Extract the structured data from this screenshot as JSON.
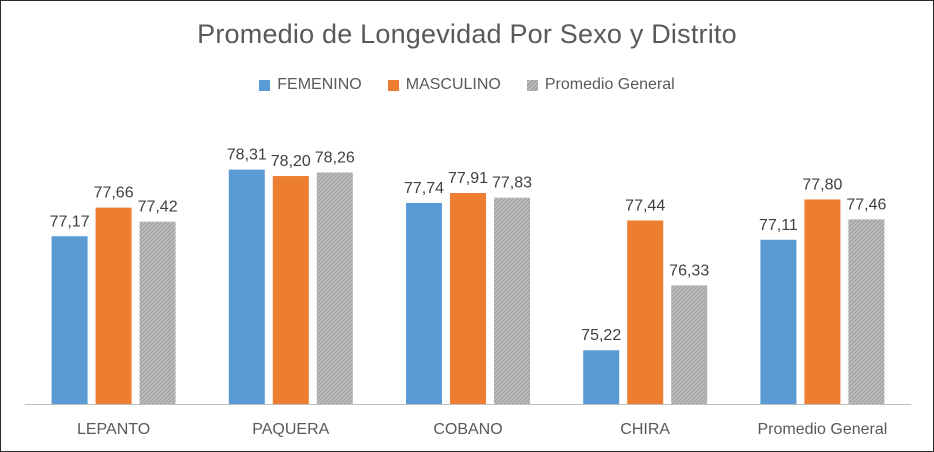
{
  "chart_data": {
    "type": "bar",
    "title": "Promedio de Longevidad Por Sexo y Distrito",
    "categories": [
      "LEPANTO",
      "PAQUERA",
      "COBANO",
      "CHIRA",
      "Promedio General"
    ],
    "series": [
      {
        "name": "FEMENINO",
        "color": "#5b9bd5",
        "pattern": false,
        "values": [
          77.17,
          78.31,
          77.74,
          75.22,
          77.11
        ],
        "labels": [
          "77,17",
          "78,31",
          "77,74",
          "75,22",
          "77,11"
        ]
      },
      {
        "name": "MASCULINO",
        "color": "#ed7d31",
        "pattern": false,
        "values": [
          77.66,
          78.2,
          77.91,
          77.44,
          77.8
        ],
        "labels": [
          "77,66",
          "78,20",
          "77,91",
          "77,44",
          "77,80"
        ]
      },
      {
        "name": "Promedio General",
        "color": "#a5a5a5",
        "pattern": true,
        "values": [
          77.42,
          78.26,
          77.83,
          76.33,
          77.46
        ],
        "labels": [
          "77,42",
          "78,26",
          "77,83",
          "76,33",
          "77,46"
        ]
      }
    ],
    "ylim": [
      74.3,
      78.8
    ],
    "xlabel": "",
    "ylabel": "",
    "legend_position": "top",
    "grid": false
  }
}
